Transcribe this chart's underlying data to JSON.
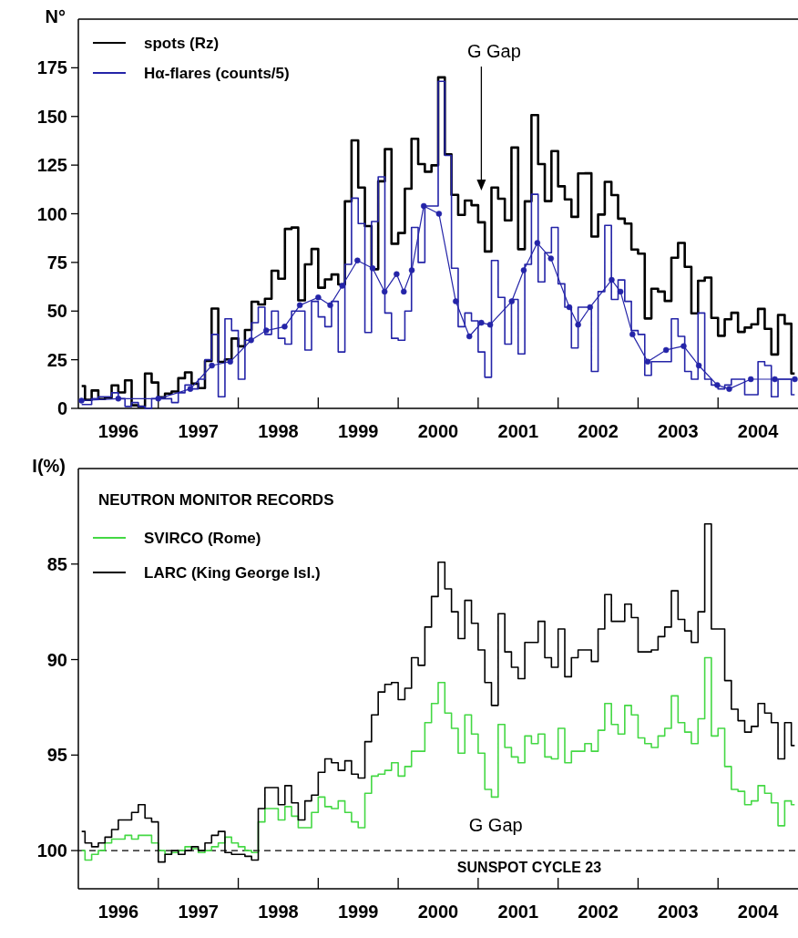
{
  "chart_data": [
    {
      "type": "step",
      "ylabel": "N°",
      "xlim": [
        1996,
        2005
      ],
      "ylim": [
        0,
        200
      ],
      "yticks": [
        0,
        25,
        50,
        75,
        100,
        125,
        150,
        175
      ],
      "xticks": [
        {
          "value": 1996.5,
          "label": "1996"
        },
        {
          "value": 1997,
          "label": null
        },
        {
          "value": 1997.5,
          "label": "1997"
        },
        {
          "value": 1998,
          "label": null
        },
        {
          "value": 1998.5,
          "label": "1998"
        },
        {
          "value": 1999,
          "label": null
        },
        {
          "value": 1999.5,
          "label": "1999"
        },
        {
          "value": 2000,
          "label": null
        },
        {
          "value": 2000.5,
          "label": "2000"
        },
        {
          "value": 2001,
          "label": null
        },
        {
          "value": 2001.5,
          "label": "2001"
        },
        {
          "value": 2002,
          "label": null
        },
        {
          "value": 2002.5,
          "label": "2002"
        },
        {
          "value": 2003,
          "label": null
        },
        {
          "value": 2003.5,
          "label": "2003"
        },
        {
          "value": 2004,
          "label": null
        },
        {
          "value": 2004.5,
          "label": "2004"
        }
      ],
      "x": [
        1996.042,
        1996.125,
        1996.208,
        1996.292,
        1996.375,
        1996.458,
        1996.542,
        1996.625,
        1996.708,
        1996.792,
        1996.875,
        1996.958,
        1997.042,
        1997.125,
        1997.208,
        1997.292,
        1997.375,
        1997.458,
        1997.542,
        1997.625,
        1997.708,
        1997.792,
        1997.875,
        1997.958,
        1998.042,
        1998.125,
        1998.208,
        1998.292,
        1998.375,
        1998.458,
        1998.542,
        1998.625,
        1998.708,
        1998.792,
        1998.875,
        1998.958,
        1999.042,
        1999.125,
        1999.208,
        1999.292,
        1999.375,
        1999.458,
        1999.542,
        1999.625,
        1999.708,
        1999.792,
        1999.875,
        1999.958,
        2000.042,
        2000.125,
        2000.208,
        2000.292,
        2000.375,
        2000.458,
        2000.542,
        2000.625,
        2000.708,
        2000.792,
        2000.875,
        2000.958,
        2001.042,
        2001.125,
        2001.208,
        2001.292,
        2001.375,
        2001.458,
        2001.542,
        2001.625,
        2001.708,
        2001.792,
        2001.875,
        2001.958,
        2002.042,
        2002.125,
        2002.208,
        2002.292,
        2002.375,
        2002.458,
        2002.542,
        2002.625,
        2002.708,
        2002.792,
        2002.875,
        2002.958,
        2003.042,
        2003.125,
        2003.208,
        2003.292,
        2003.375,
        2003.458,
        2003.542,
        2003.625,
        2003.708,
        2003.792,
        2003.875,
        2003.958,
        2004.042,
        2004.125,
        2004.208,
        2004.292,
        2004.375,
        2004.458,
        2004.542,
        2004.625,
        2004.708,
        2004.792,
        2004.875,
        2004.958
      ],
      "series": [
        {
          "name": "spots (Rz)",
          "color": "#000000",
          "values": [
            11.5,
            4.4,
            9.2,
            4.8,
            5.5,
            11.8,
            8.2,
            14.4,
            1.6,
            0.9,
            17.9,
            13.3,
            5.7,
            7.6,
            8.7,
            15.5,
            18.5,
            12.7,
            10.4,
            24.4,
            51.3,
            23.9,
            25.2,
            35.9,
            31.9,
            40.3,
            54.8,
            53.4,
            56.3,
            70.7,
            66.6,
            92.2,
            92.9,
            55.5,
            74.0,
            81.9,
            62.0,
            66.3,
            68.8,
            63.7,
            106.4,
            137.7,
            113.5,
            93.7,
            71.5,
            116.7,
            133.2,
            84.6,
            90.1,
            112.9,
            138.5,
            125.5,
            121.6,
            124.9,
            170.1,
            130.5,
            109.7,
            99.4,
            106.8,
            104.4,
            95.6,
            80.6,
            113.5,
            107.7,
            96.6,
            134.0,
            81.8,
            106.4,
            150.7,
            125.5,
            106.5,
            132.2,
            114.1,
            107.4,
            98.4,
            120.7,
            120.8,
            88.3,
            99.6,
            116.4,
            109.6,
            97.5,
            95.0,
            81.6,
            79.5,
            46.2,
            61.5,
            60.0,
            55.2,
            77.4,
            85.0,
            72.7,
            48.8,
            65.6,
            67.2,
            46.5,
            37.3,
            45.8,
            49.1,
            39.3,
            41.5,
            43.2,
            51.1,
            40.9,
            27.7,
            48.0,
            43.5,
            17.9
          ]
        },
        {
          "name": "Hα-flares (counts/5)",
          "color": "#2424a8",
          "values": [
            2,
            2,
            5,
            6,
            6,
            8,
            5,
            1,
            3,
            1,
            0,
            5,
            5,
            5,
            3,
            8,
            12,
            10,
            15,
            25,
            38,
            6,
            46,
            40,
            15,
            35,
            44,
            52,
            38,
            50,
            36,
            33,
            50,
            50,
            30,
            55,
            47,
            42,
            55,
            29,
            74,
            108,
            95,
            39,
            96,
            119,
            49,
            36,
            35,
            50,
            93,
            75,
            104,
            104,
            168,
            130,
            72,
            42,
            49,
            45,
            29,
            16,
            76,
            57,
            33,
            56,
            28,
            74,
            110,
            65,
            80,
            93,
            64,
            52,
            31,
            52,
            52,
            19,
            60,
            94,
            56,
            66,
            55,
            40,
            38,
            17,
            24,
            24,
            24,
            46,
            37,
            19,
            15,
            49,
            15,
            12,
            10,
            12,
            15,
            15,
            7,
            7,
            24,
            22,
            6,
            15,
            15,
            7
          ]
        },
        {
          "type": "line",
          "color": "#2424a8",
          "marker": "circle",
          "x": [
            1996.04,
            1996.5,
            1997.0,
            1997.4,
            1997.67,
            1997.9,
            1998.16,
            1998.35,
            1998.58,
            1998.77,
            1999.0,
            1999.15,
            1999.3,
            1999.49,
            1999.68,
            1999.83,
            1999.98,
            2000.07,
            2000.17,
            2000.32,
            2000.51,
            2000.72,
            2000.89,
            2001.04,
            2001.15,
            2001.42,
            2001.57,
            2001.74,
            2001.91,
            2002.14,
            2002.25,
            2002.4,
            2002.67,
            2002.78,
            2002.93,
            2003.12,
            2003.35,
            2003.57,
            2003.76,
            2003.99,
            2004.14,
            2004.41,
            2004.71,
            2004.96
          ],
          "values": [
            4,
            5,
            5,
            10,
            22,
            24,
            35,
            40,
            42,
            53,
            57,
            53,
            63,
            76,
            72,
            60,
            69,
            60,
            71,
            104,
            100,
            55,
            37,
            44,
            43,
            55,
            71,
            85,
            77,
            52,
            43,
            52,
            66,
            60,
            38,
            24,
            30,
            32,
            22,
            12,
            10,
            15,
            15,
            15
          ]
        }
      ],
      "legend": "top left",
      "annotations": [
        "G Gap"
      ]
    },
    {
      "type": "step",
      "ylabel": "I(%)",
      "xlim": [
        1996,
        2005
      ],
      "ylim": [
        102,
        80
      ],
      "yticks": [
        85,
        90,
        95,
        100
      ],
      "xticks": [
        {
          "value": 1996.5,
          "label": "1996"
        },
        {
          "value": 1997,
          "label": null
        },
        {
          "value": 1997.5,
          "label": "1997"
        },
        {
          "value": 1998,
          "label": null
        },
        {
          "value": 1998.5,
          "label": "1998"
        },
        {
          "value": 1999,
          "label": null
        },
        {
          "value": 1999.5,
          "label": "1999"
        },
        {
          "value": 2000,
          "label": null
        },
        {
          "value": 2000.5,
          "label": "2000"
        },
        {
          "value": 2001,
          "label": null
        },
        {
          "value": 2001.5,
          "label": "2001"
        },
        {
          "value": 2002,
          "label": null
        },
        {
          "value": 2002.5,
          "label": "2002"
        },
        {
          "value": 2003,
          "label": null
        },
        {
          "value": 2003.5,
          "label": "2003"
        },
        {
          "value": 2004,
          "label": null
        },
        {
          "value": 2004.5,
          "label": "2004"
        }
      ],
      "x": [
        1996.042,
        1996.125,
        1996.208,
        1996.292,
        1996.375,
        1996.458,
        1996.542,
        1996.625,
        1996.708,
        1996.792,
        1996.875,
        1996.958,
        1997.042,
        1997.125,
        1997.208,
        1997.292,
        1997.375,
        1997.458,
        1997.542,
        1997.625,
        1997.708,
        1997.792,
        1997.875,
        1997.958,
        1998.042,
        1998.125,
        1998.208,
        1998.292,
        1998.375,
        1998.458,
        1998.542,
        1998.625,
        1998.708,
        1998.792,
        1998.875,
        1998.958,
        1999.042,
        1999.125,
        1999.208,
        1999.292,
        1999.375,
        1999.458,
        1999.542,
        1999.625,
        1999.708,
        1999.792,
        1999.875,
        1999.958,
        2000.042,
        2000.125,
        2000.208,
        2000.292,
        2000.375,
        2000.458,
        2000.542,
        2000.625,
        2000.708,
        2000.792,
        2000.875,
        2000.958,
        2001.042,
        2001.125,
        2001.208,
        2001.292,
        2001.375,
        2001.458,
        2001.542,
        2001.625,
        2001.708,
        2001.792,
        2001.875,
        2001.958,
        2002.042,
        2002.125,
        2002.208,
        2002.292,
        2002.375,
        2002.458,
        2002.542,
        2002.625,
        2002.708,
        2002.792,
        2002.875,
        2002.958,
        2003.042,
        2003.125,
        2003.208,
        2003.292,
        2003.375,
        2003.458,
        2003.542,
        2003.625,
        2003.708,
        2003.792,
        2003.875,
        2003.958,
        2004.042,
        2004.125,
        2004.208,
        2004.292,
        2004.375,
        2004.458,
        2004.542,
        2004.625,
        2004.708,
        2004.792,
        2004.875,
        2004.958
      ],
      "series": [
        {
          "name": "SVIRCO (Rome)",
          "color": "#44d844",
          "values": [
            100.0,
            100.5,
            100.2,
            100.0,
            99.6,
            99.4,
            99.4,
            99.2,
            99.4,
            99.2,
            99.2,
            99.6,
            100.0,
            100.2,
            100.1,
            100.0,
            99.8,
            99.9,
            100.1,
            100.0,
            99.8,
            99.6,
            99.3,
            99.6,
            99.8,
            100.0,
            100.1,
            98.5,
            97.8,
            97.8,
            98.4,
            97.7,
            98.2,
            98.8,
            98.8,
            98.0,
            97.2,
            97.7,
            97.8,
            97.4,
            98.0,
            98.5,
            98.8,
            97.0,
            96.1,
            96.0,
            95.8,
            95.4,
            96.1,
            95.6,
            94.8,
            94.8,
            93.3,
            92.3,
            91.2,
            92.8,
            93.6,
            94.9,
            92.9,
            93.9,
            94.9,
            96.8,
            97.2,
            93.4,
            94.6,
            95.1,
            95.4,
            94.0,
            94.4,
            93.9,
            95.1,
            95.2,
            93.6,
            95.4,
            94.8,
            94.8,
            94.4,
            94.8,
            93.7,
            92.3,
            93.4,
            93.9,
            92.4,
            92.9,
            94.1,
            94.4,
            94.6,
            94.0,
            93.6,
            91.9,
            93.3,
            93.8,
            94.4,
            93.1,
            89.9,
            94.0,
            93.6,
            95.6,
            96.8,
            96.9,
            97.6,
            97.4,
            96.6,
            97.0,
            97.5,
            98.7,
            97.4,
            97.6
          ]
        },
        {
          "name": "LARC (King George Isl.)",
          "color": "#000000",
          "values": [
            99.0,
            99.6,
            99.8,
            99.6,
            99.3,
            98.9,
            98.4,
            98.4,
            98.0,
            97.6,
            98.3,
            98.5,
            100.6,
            100.2,
            100.0,
            100.2,
            100.0,
            99.8,
            100.0,
            99.6,
            99.2,
            99.0,
            100.1,
            100.2,
            100.2,
            100.3,
            100.5,
            97.8,
            96.7,
            96.7,
            97.6,
            96.6,
            97.5,
            98.4,
            97.4,
            97.1,
            95.9,
            95.2,
            95.4,
            95.8,
            95.3,
            96.0,
            96.2,
            94.3,
            92.9,
            91.7,
            91.3,
            91.2,
            92.1,
            91.5,
            89.9,
            90.3,
            88.3,
            86.7,
            84.9,
            86.3,
            87.5,
            88.9,
            86.9,
            88.1,
            89.5,
            91.2,
            92.4,
            87.6,
            89.6,
            90.4,
            91.0,
            89.1,
            89.1,
            88.0,
            89.9,
            90.4,
            88.4,
            90.9,
            89.9,
            89.5,
            89.5,
            90.1,
            88.4,
            86.6,
            88.0,
            88.0,
            87.1,
            87.8,
            89.6,
            89.6,
            89.5,
            88.8,
            88.3,
            86.4,
            87.9,
            88.5,
            89.1,
            87.5,
            82.9,
            88.4,
            88.4,
            91.1,
            92.6,
            93.2,
            93.8,
            93.5,
            92.3,
            92.8,
            93.3,
            95.2,
            93.3,
            94.5
          ]
        }
      ],
      "legend": "top left",
      "legend_title": "NEUTRON MONITOR RECORDS",
      "ref_lines": [
        {
          "axis": "y",
          "value": 100,
          "label": "SUNSPOT CYCLE 23",
          "line_style": "dashed",
          "color": "#000000"
        }
      ],
      "annotations": [
        "G Gap"
      ]
    }
  ]
}
